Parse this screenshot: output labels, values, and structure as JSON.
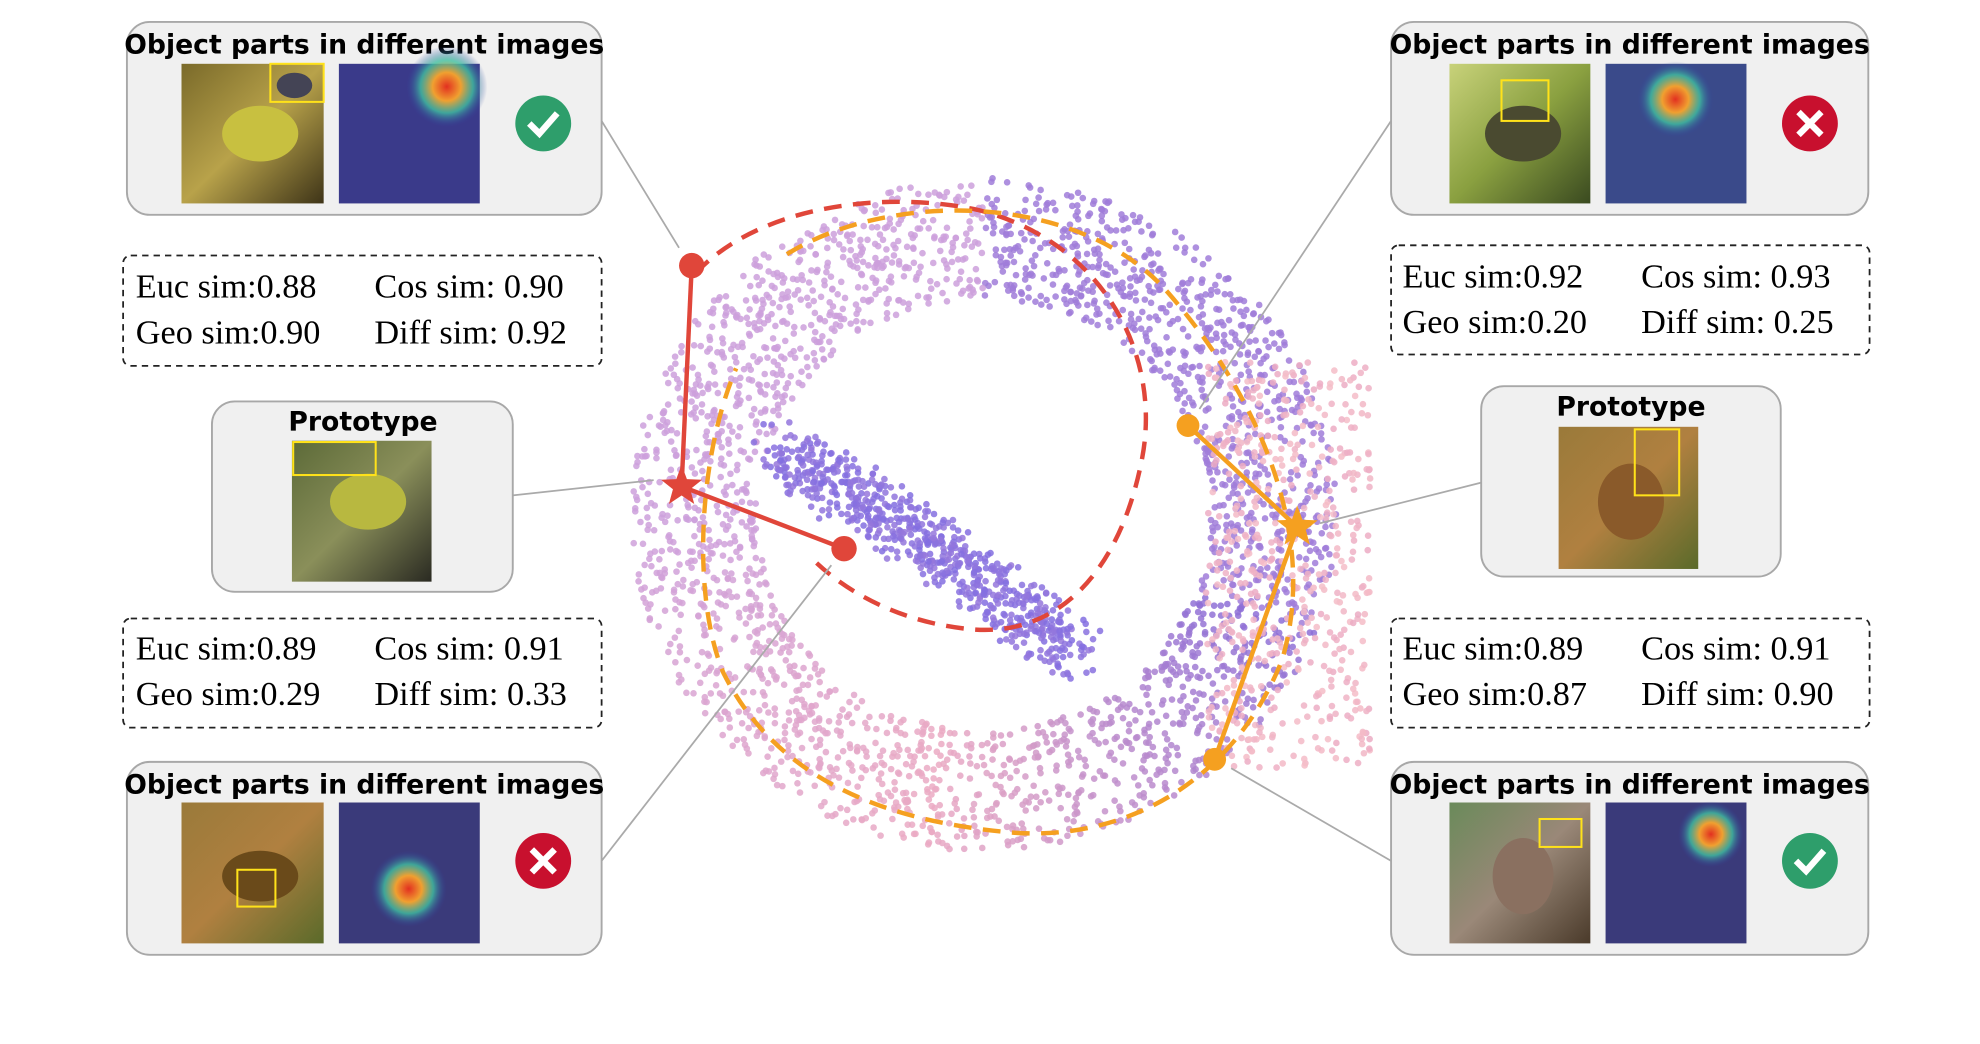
{
  "panels": [
    {
      "title": "Object parts in different images"
    },
    {
      "title": "Object parts in different images"
    },
    {
      "title": "Object parts in different images"
    },
    {
      "title": "Object parts in different images"
    }
  ],
  "prototypes": [
    {
      "title": "Prototype"
    },
    {
      "title": "Prototype"
    }
  ],
  "similarity_boxes": [
    {
      "lines": [
        "Euc sim:0.88",
        "Cos sim: 0.90",
        "Geo sim:0.90",
        "Diff sim: 0.92"
      ]
    },
    {
      "lines": [
        "Euc sim:0.89",
        "Cos sim: 0.91",
        "Geo sim:0.29",
        "Diff sim: 0.33"
      ]
    },
    {
      "lines": [
        "Euc sim:0.92",
        "Cos sim: 0.93",
        "Geo sim:0.20",
        "Diff sim: 0.25"
      ]
    },
    {
      "lines": [
        "Euc sim:0.89",
        "Cos sim: 0.91",
        "Geo sim:0.87",
        "Diff sim: 0.90"
      ]
    }
  ]
}
